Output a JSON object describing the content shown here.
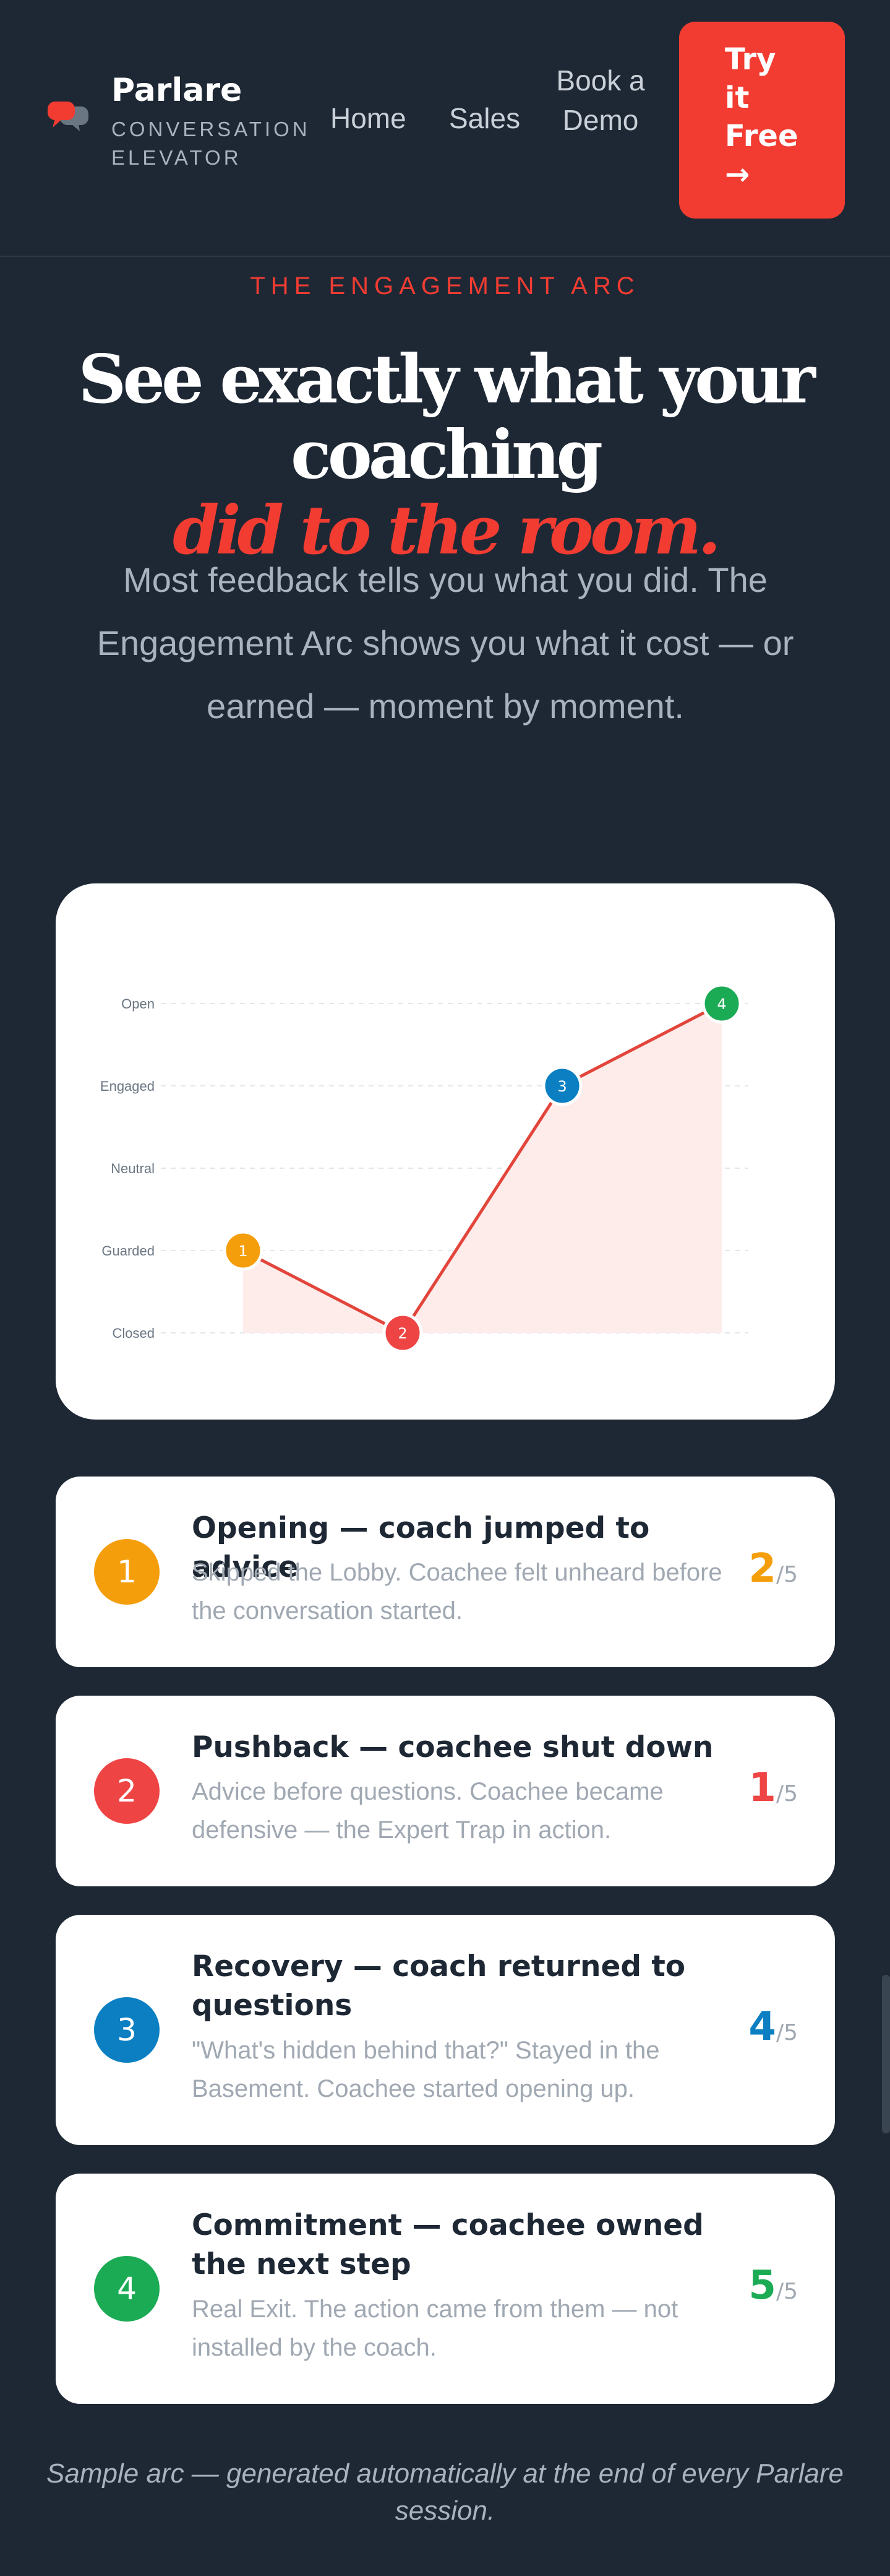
{
  "header": {
    "brand_name": "Parlare",
    "brand_tagline": "CONVERSATION ELEVATOR",
    "nav": {
      "home": "Home",
      "sales": "Sales",
      "demo": "Book a Demo"
    },
    "cta": {
      "line1": "Try",
      "line2": "it",
      "line3": "Free",
      "arrow": "→"
    },
    "logo_icon": "chat-bubbles-icon"
  },
  "hero": {
    "eyebrow": "THE ENGAGEMENT ARC",
    "title_line1": "See exactly what your coaching",
    "title_line2": "did to the room.",
    "subtitle": "Most feedback tells you what you did. The Engagement Arc shows you what it cost — or earned — moment by moment."
  },
  "chart_data": {
    "type": "line",
    "y_categories": [
      "Closed",
      "Guarded",
      "Neutral",
      "Engaged",
      "Open"
    ],
    "points": [
      {
        "label": "1",
        "level": "Guarded",
        "color": "#f59e0b"
      },
      {
        "label": "2",
        "level": "Closed",
        "color": "#ef4444"
      },
      {
        "label": "3",
        "level": "Engaged",
        "color": "#0b7fc2"
      },
      {
        "label": "4",
        "level": "Open",
        "color": "#1cab55"
      }
    ],
    "line_color": "#e2453b",
    "area_fill": "#fdecea",
    "grid": true
  },
  "moments": [
    {
      "number": "1",
      "title": "Opening — coach jumped to advice",
      "description": "Skipped the Lobby. Coachee felt unheard before the conversation started.",
      "score": "2",
      "score_max": "/5",
      "color": "#f59e0b"
    },
    {
      "number": "2",
      "title": "Pushback — coachee shut down",
      "description": "Advice before questions. Coachee became defensive — the Expert Trap in action.",
      "score": "1",
      "score_max": "/5",
      "color": "#ef4444"
    },
    {
      "number": "3",
      "title": "Recovery — coach returned to questions",
      "description": "\"What's hidden behind that?\" Stayed in the Basement. Coachee started opening up.",
      "score": "4",
      "score_max": "/5",
      "color": "#0b7fc2"
    },
    {
      "number": "4",
      "title": "Commitment — coachee owned the next step",
      "description": "Real Exit. The action came from them — not installed by the coach.",
      "score": "5",
      "score_max": "/5",
      "color": "#1cab55"
    }
  ],
  "footnote": "Sample arc — generated automatically at the end of every Parlare session."
}
